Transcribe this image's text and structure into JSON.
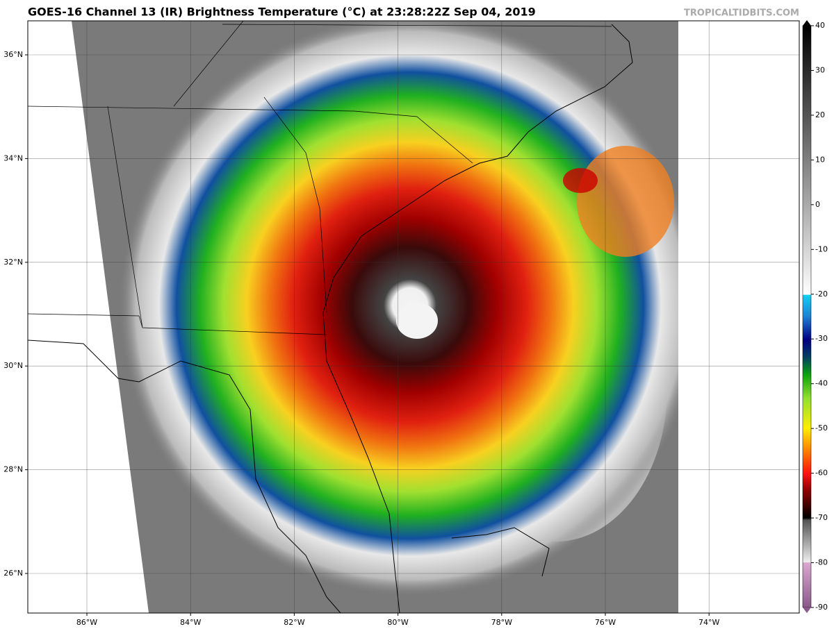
{
  "header": {
    "title": "GOES-16 Channel 13 (IR) Brightness Temperature (°C) at 23:28:22Z Sep 04, 2019",
    "source": "TROPICALTIDBITS.COM"
  },
  "map": {
    "lat_labels": [
      {
        "value": 36,
        "label": "36°N"
      },
      {
        "value": 34,
        "label": "34°N"
      },
      {
        "value": 32,
        "label": "32°N"
      },
      {
        "value": 30,
        "label": "30°N"
      },
      {
        "value": 28,
        "label": "28°N"
      },
      {
        "value": 26,
        "label": "26°N"
      }
    ],
    "lon_labels": [
      {
        "value": -86,
        "label": "86°W"
      },
      {
        "value": -84,
        "label": "84°W"
      },
      {
        "value": -82,
        "label": "82°W"
      },
      {
        "value": -80,
        "label": "80°W"
      },
      {
        "value": -78,
        "label": "78°W"
      },
      {
        "value": -76,
        "label": "76°W"
      },
      {
        "value": -74,
        "label": "74°W"
      }
    ]
  },
  "colorbar": {
    "ticks": [
      -90,
      -80,
      -70,
      -60,
      -50,
      -40,
      -30,
      -20,
      -10,
      0,
      10,
      20,
      30,
      40
    ]
  }
}
